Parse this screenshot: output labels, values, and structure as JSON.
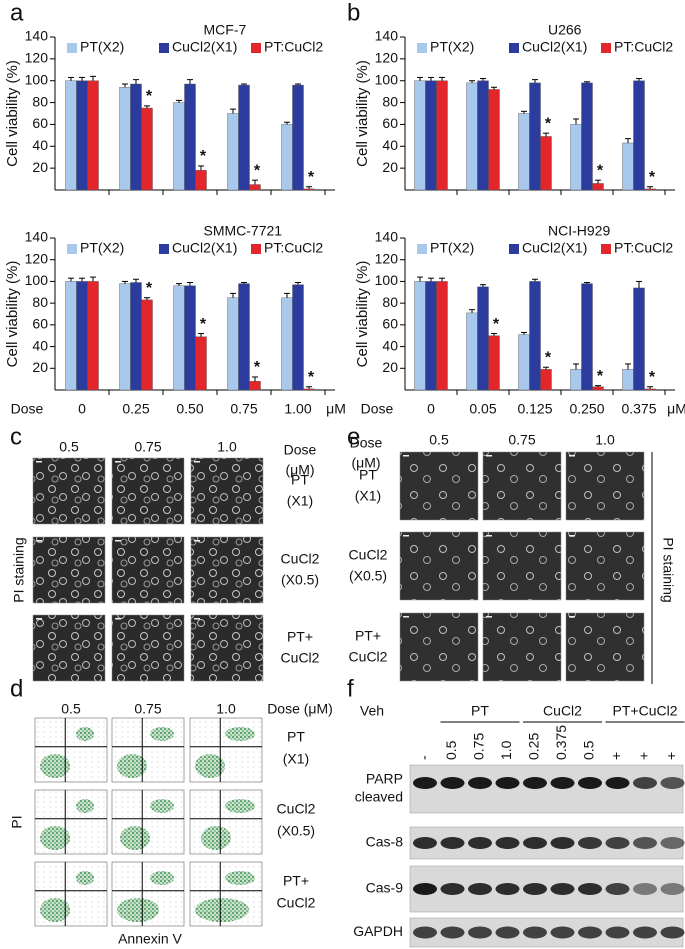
{
  "panel_letters": [
    "a",
    "b",
    "c",
    "d",
    "e",
    "f"
  ],
  "chart_data": [
    {
      "type": "bar",
      "title": "MCF-7",
      "y_label": "Cell viability (%)",
      "categories": [
        null,
        null,
        null,
        null,
        null
      ],
      "ylim": [
        0,
        140
      ],
      "yticks": [
        20,
        40,
        60,
        80,
        100,
        120,
        140
      ],
      "legend": "top",
      "series": [
        {
          "name": "PT(X2)",
          "color": "#a9c9ec",
          "values": [
            100,
            94,
            80,
            70,
            60
          ],
          "errors": [
            3,
            3,
            2,
            4,
            2
          ]
        },
        {
          "name": "CuCl2(X1)",
          "color": "#2b3c9e",
          "values": [
            100,
            97,
            97,
            96,
            96
          ],
          "errors": [
            3,
            4,
            4,
            1,
            1
          ]
        },
        {
          "name": "PT:CuCl2",
          "color": "#e3262b",
          "values": [
            100,
            75,
            18,
            5,
            1
          ],
          "errors": [
            4,
            2,
            4,
            4,
            2
          ],
          "significance": [
            null,
            "*",
            "*",
            "*",
            "*"
          ]
        }
      ]
    },
    {
      "type": "bar",
      "title": "SMMC-7721",
      "y_label": "Cell viability (%)",
      "x_label": "Dose",
      "x_unit": "μM",
      "categories": [
        "0",
        "0.25",
        "0.50",
        "0.75",
        "1.00"
      ],
      "ylim": [
        0,
        140
      ],
      "yticks": [
        20,
        40,
        60,
        80,
        100,
        120,
        140
      ],
      "legend": "top",
      "series": [
        {
          "name": "PT(X2)",
          "color": "#a9c9ec",
          "values": [
            100,
            98,
            96,
            85,
            85
          ],
          "errors": [
            3,
            2,
            2,
            4,
            4
          ]
        },
        {
          "name": "CuCl2(X1)",
          "color": "#2b3c9e",
          "values": [
            100,
            99,
            96,
            98,
            97
          ],
          "errors": [
            3,
            3,
            3,
            1,
            2
          ]
        },
        {
          "name": "PT:CuCl2",
          "color": "#e3262b",
          "values": [
            100,
            83,
            49,
            8,
            1
          ],
          "errors": [
            4,
            2,
            3,
            4,
            2
          ],
          "significance": [
            null,
            "*",
            "*",
            "*",
            "*"
          ]
        }
      ]
    },
    {
      "type": "bar",
      "title": "U266",
      "y_label": "Cell viability (%)",
      "categories": [
        null,
        null,
        null,
        null,
        null
      ],
      "ylim": [
        0,
        140
      ],
      "yticks": [
        20,
        40,
        60,
        80,
        100,
        120,
        140
      ],
      "legend": "top",
      "series": [
        {
          "name": "PT(X2)",
          "color": "#a9c9ec",
          "values": [
            100,
            98,
            70,
            60,
            43
          ],
          "errors": [
            3,
            2,
            2,
            5,
            4
          ]
        },
        {
          "name": "CuCl2(X1)",
          "color": "#2b3c9e",
          "values": [
            100,
            100,
            98,
            98,
            100
          ],
          "errors": [
            3,
            2,
            3,
            1,
            2
          ]
        },
        {
          "name": "PT:CuCl2",
          "color": "#e3262b",
          "values": [
            100,
            92,
            49,
            6,
            1
          ],
          "errors": [
            3,
            2,
            3,
            3,
            2
          ],
          "significance": [
            null,
            null,
            "*",
            "*",
            "*"
          ]
        }
      ]
    },
    {
      "type": "bar",
      "title": "NCI-H929",
      "y_label": "Cell viability (%)",
      "x_label": "Dose",
      "x_unit": "μM",
      "categories": [
        "0",
        "0.05",
        "0.125",
        "0.250",
        "0.375"
      ],
      "ylim": [
        0,
        140
      ],
      "yticks": [
        20,
        40,
        60,
        80,
        100,
        120,
        140
      ],
      "legend": "top",
      "series": [
        {
          "name": "PT(X2)",
          "color": "#a9c9ec",
          "values": [
            100,
            71,
            51,
            19,
            19
          ],
          "errors": [
            4,
            3,
            2,
            5,
            5
          ]
        },
        {
          "name": "CuCl2(X1)",
          "color": "#2b3c9e",
          "values": [
            100,
            95,
            100,
            98,
            94
          ],
          "errors": [
            3,
            2,
            2,
            1,
            6
          ]
        },
        {
          "name": "PT:CuCl2",
          "color": "#e3262b",
          "values": [
            100,
            50,
            19,
            3,
            1
          ],
          "errors": [
            3,
            2,
            2,
            1,
            2
          ],
          "significance": [
            null,
            "*",
            "*",
            "*",
            "*"
          ]
        }
      ]
    }
  ],
  "panel_c": {
    "doses": [
      "0.5",
      "0.75",
      "1.0"
    ],
    "dose_label": [
      "Dose",
      "(μM)"
    ],
    "rows": [
      [
        "PT",
        "(X1)"
      ],
      [
        "CuCl2",
        "(X0.5)"
      ],
      [
        "PT+",
        "CuCl2"
      ]
    ],
    "side_label": "PI staining"
  },
  "panel_d": {
    "doses": [
      "0.5",
      "0.75",
      "1.0"
    ],
    "dose_label": "Dose (μM)",
    "rows": [
      [
        "PT",
        "(X1)"
      ],
      [
        "CuCl2",
        "(X0.5)"
      ],
      [
        "PT+",
        "CuCl2"
      ]
    ],
    "y_label": "PI",
    "x_label": "Annexin V"
  },
  "panel_e": {
    "doses": [
      "0.5",
      "0.75",
      "1.0"
    ],
    "dose_label": [
      "Dose",
      "(μM)"
    ],
    "rows": [
      [
        "PT",
        "(X1)"
      ],
      [
        "CuCl2",
        "(X0.5)"
      ],
      [
        "PT+",
        "CuCl2"
      ]
    ],
    "side_label": "PI staining"
  },
  "panel_f": {
    "groups": [
      "Veh",
      "PT",
      "CuCl2",
      "PT+CuCl2"
    ],
    "lanes": [
      "-",
      "0.5",
      "0.75",
      "1.0",
      "0.25",
      "0.375",
      "0.5",
      "+",
      "+",
      "+"
    ],
    "rows": [
      [
        "PARP",
        "cleaved"
      ],
      [
        "Cas-8"
      ],
      [
        "Cas-9"
      ],
      [
        "GAPDH"
      ]
    ]
  }
}
